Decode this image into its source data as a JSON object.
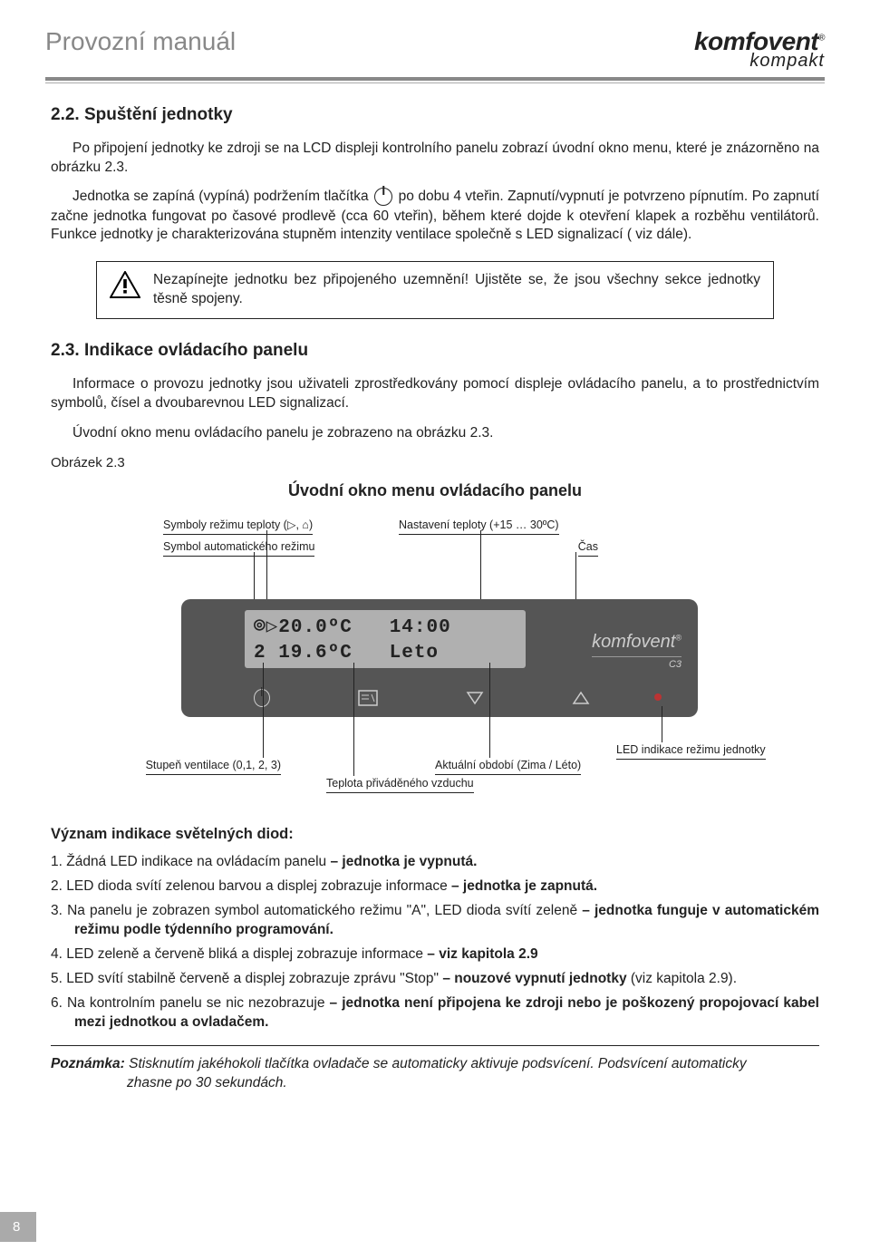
{
  "header": {
    "doc_title": "Provozní manuál",
    "brand": "komfovent",
    "brand_sub": "kompakt"
  },
  "s22": {
    "heading": "2.2. Spuštění jednotky",
    "p1": "Po připojení jednotky ke zdroji se na LCD displeji kontrolního panelu zobrazí úvodní okno menu, které je znázorněno na obrázku 2.3.",
    "p2a": "Jednotka se zapíná (vypíná) podržením tlačítka ",
    "p2b": " po dobu 4 vteřin. Zapnutí/vypnutí je potvrzeno pípnutím. Po zapnutí začne jednotka fungovat po časové prodlevě (cca 60 vteřin), během které dojde k otevření klapek a rozběhu ventilátorů. Funkce jednotky je charakterizována stupněm intenzity ventilace společně s LED signalizací ( viz dále).",
    "warning": "Nezapínejte jednotku bez připojeného uzemnění! Ujistěte se, že jsou všechny sekce jednotky těsně spojeny."
  },
  "s23": {
    "heading": "2.3. Indikace ovládacího panelu",
    "p1": "Informace o provozu jednotky jsou uživateli zprostředkovány pomocí displeje ovládacího panelu, a to prostřednictvím symbolů, čísel a dvoubarevnou LED signalizací.",
    "p2": "Úvodní okno menu ovládacího panelu je zobrazeno na obrázku 2.3.",
    "fig_ref": "Obrázek 2.3",
    "fig_title": "Úvodní okno menu ovládacího panelu"
  },
  "panel": {
    "lcd_line1": "⌾▷20.0ºC   14:00",
    "lcd_line2": "2 19.6ºC   Leto",
    "brand": "komfovent",
    "brand_sub": "C3",
    "callouts": {
      "temp_symbols": "Symboly režimu teploty (▷, ⌂)",
      "auto_symbol": "Symbol automatického režimu",
      "temp_setting": "Nastavení teploty (+15 … 30ºC)",
      "time": "Čas",
      "vent_level": "Stupeň ventilace (0,1, 2, 3)",
      "supply_temp": "Teplota přiváděného vzduchu",
      "season": "Aktuální období (Zima / Léto)",
      "led": "LED indikace režimu jednotky"
    }
  },
  "led_section": {
    "heading": "Význam indikace světelných diod:",
    "items": [
      {
        "n": "1.",
        "a": "Žádná LED indikace na ovládacím panelu ",
        "b": "– jednotka je vypnutá."
      },
      {
        "n": "2.",
        "a": "LED dioda svítí zelenou barvou a displej zobrazuje informace ",
        "b": "– jednotka je zapnutá."
      },
      {
        "n": "3.",
        "a": "Na panelu je zobrazen symbol automatického režimu \"A\",  LED dioda svítí zeleně ",
        "b": "– jednotka funguje v automatickém režimu podle týdenního programování."
      },
      {
        "n": "4.",
        "a": "LED zeleně a červeně bliká a displej zobrazuje informace ",
        "b": "– viz kapitola 2.9"
      },
      {
        "n": "5.",
        "a": "LED svítí stabilně červeně a displej zobrazuje zprávu \"Stop\" ",
        "b": "– nouzové vypnutí jednotky",
        "c": " (viz kapitola 2.9)."
      },
      {
        "n": "6.",
        "a": "Na kontrolním panelu se nic nezobrazuje ",
        "b": "– jednotka není připojena ke zdroji nebo je poškozený propojovací kabel mezi jednotkou a ovladačem."
      }
    ]
  },
  "note": {
    "label": "Poznámka:",
    "text1": " Stisknutím jakéhokoli tlačítka ovladače se automaticky aktivuje podsvícení. Podsvícení automaticky",
    "text2": "zhasne po 30 sekundách."
  },
  "page_number": "8"
}
